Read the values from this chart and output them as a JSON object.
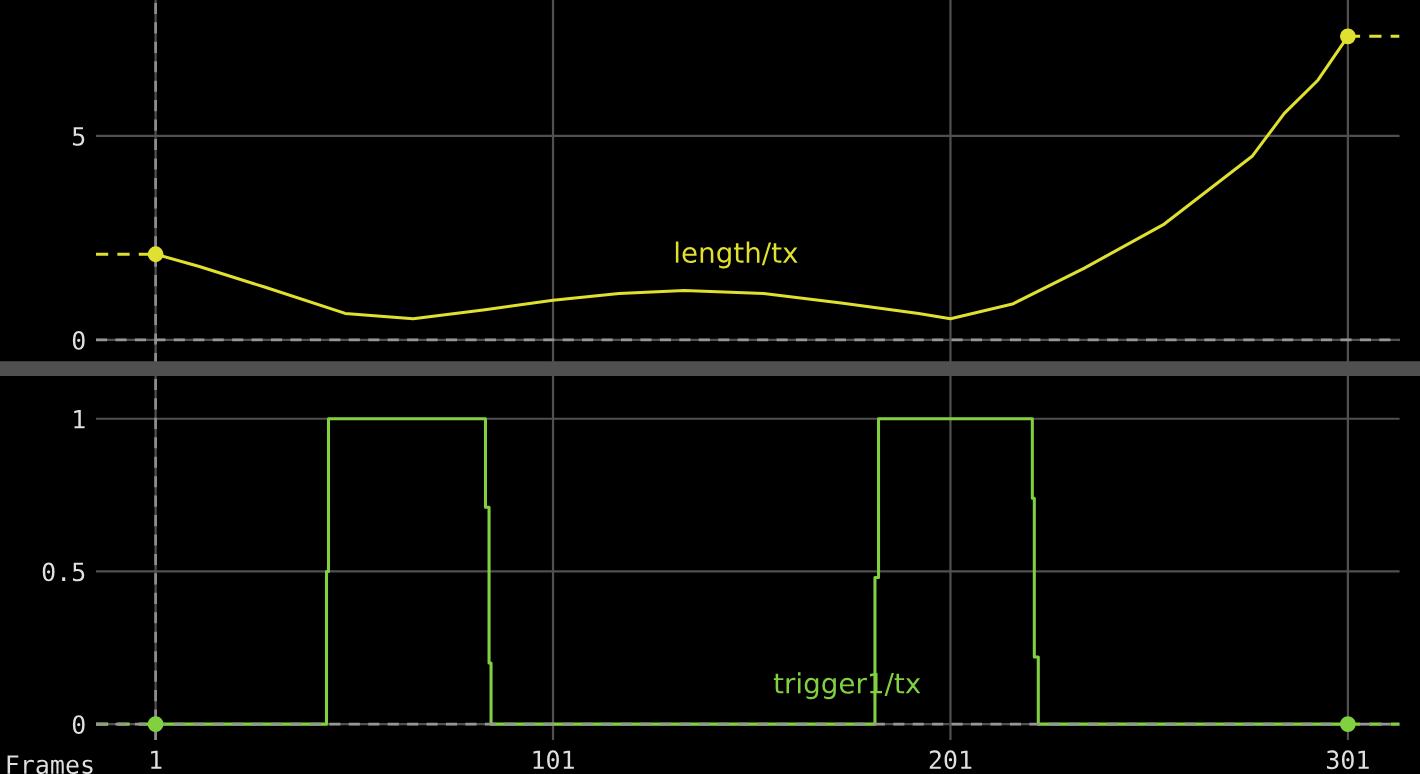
{
  "chart_data": [
    {
      "type": "line",
      "xlim": [
        -14,
        314
      ],
      "ylim": [
        -0.59,
        8.33
      ],
      "xticks": [
        1,
        101,
        201,
        301
      ],
      "yticks": [
        0,
        5
      ],
      "tick_labels": "y",
      "grid": true,
      "legend": false,
      "ref_lines": [
        {
          "axis": "x",
          "value": 1,
          "color": "#8c8c8c",
          "line_style": "dashed"
        },
        {
          "axis": "y",
          "value": 0,
          "color": "#969696",
          "line_style": "dashed"
        }
      ],
      "series": [
        {
          "name": "length/tx",
          "color": "#e0e030",
          "x": [
            1,
            12,
            28.6,
            48.7,
            65.8,
            83.9,
            101,
            117.6,
            134,
            154,
            174,
            193,
            201,
            216.6,
            234.7,
            254.8,
            276.9,
            285,
            293.5,
            301
          ],
          "values": [
            2.1,
            1.8,
            1.29,
            0.65,
            0.52,
            0.74,
            0.97,
            1.14,
            1.21,
            1.14,
            0.9,
            0.65,
            0.52,
            0.88,
            1.76,
            2.84,
            4.5,
            5.55,
            6.37,
            7.44
          ]
        },
        {
          "type": "scatter",
          "color": "#e0e030",
          "marker": "circle",
          "x": [
            1,
            301
          ],
          "values": [
            2.1,
            7.44
          ]
        },
        {
          "color": "#e0e030",
          "line_style": "dashed",
          "x": [
            -14,
            1
          ],
          "values": [
            2.1,
            2.1
          ]
        },
        {
          "color": "#e0e030",
          "line_style": "dashed",
          "x": [
            301,
            314
          ],
          "values": [
            7.44,
            7.44
          ]
        }
      ]
    },
    {
      "type": "line",
      "xlabel": "Frames",
      "xlim": [
        -14,
        314
      ],
      "ylim": [
        -0.052,
        1.14
      ],
      "xticks": [
        1,
        101,
        201,
        301
      ],
      "yticks": [
        0,
        0.5,
        1
      ],
      "grid": true,
      "legend": false,
      "ref_lines": [
        {
          "axis": "x",
          "value": 1,
          "color": "#8c8c8c",
          "line_style": "dashed"
        },
        {
          "axis": "y",
          "value": 0,
          "color": "#969696",
          "line_style": "dashed"
        }
      ],
      "series": [
        {
          "name": "trigger1/tx",
          "color": "#80d040",
          "x": [
            1,
            44,
            44,
            44.5,
            44.5,
            84,
            84,
            84.9,
            84.9,
            85.4,
            85.4,
            182,
            182,
            182.9,
            182.9,
            221.6,
            221.6,
            222.1,
            222.1,
            223.1,
            223.1,
            301
          ],
          "values": [
            0,
            0,
            0.5,
            0.5,
            1,
            1,
            0.71,
            0.71,
            0.2,
            0.2,
            0,
            0,
            0.48,
            0.48,
            1,
            1,
            0.74,
            0.74,
            0.22,
            0.22,
            0,
            0
          ]
        },
        {
          "type": "scatter",
          "color": "#80d040",
          "marker": "circle",
          "x": [
            1,
            301
          ],
          "values": [
            0,
            0
          ]
        },
        {
          "color": "#80d040",
          "line_style": "dashed",
          "x": [
            -14,
            1
          ],
          "values": [
            0,
            0
          ]
        },
        {
          "color": "#80d040",
          "line_style": "dashed",
          "x": [
            301,
            314
          ],
          "values": [
            0,
            0
          ]
        }
      ]
    }
  ]
}
